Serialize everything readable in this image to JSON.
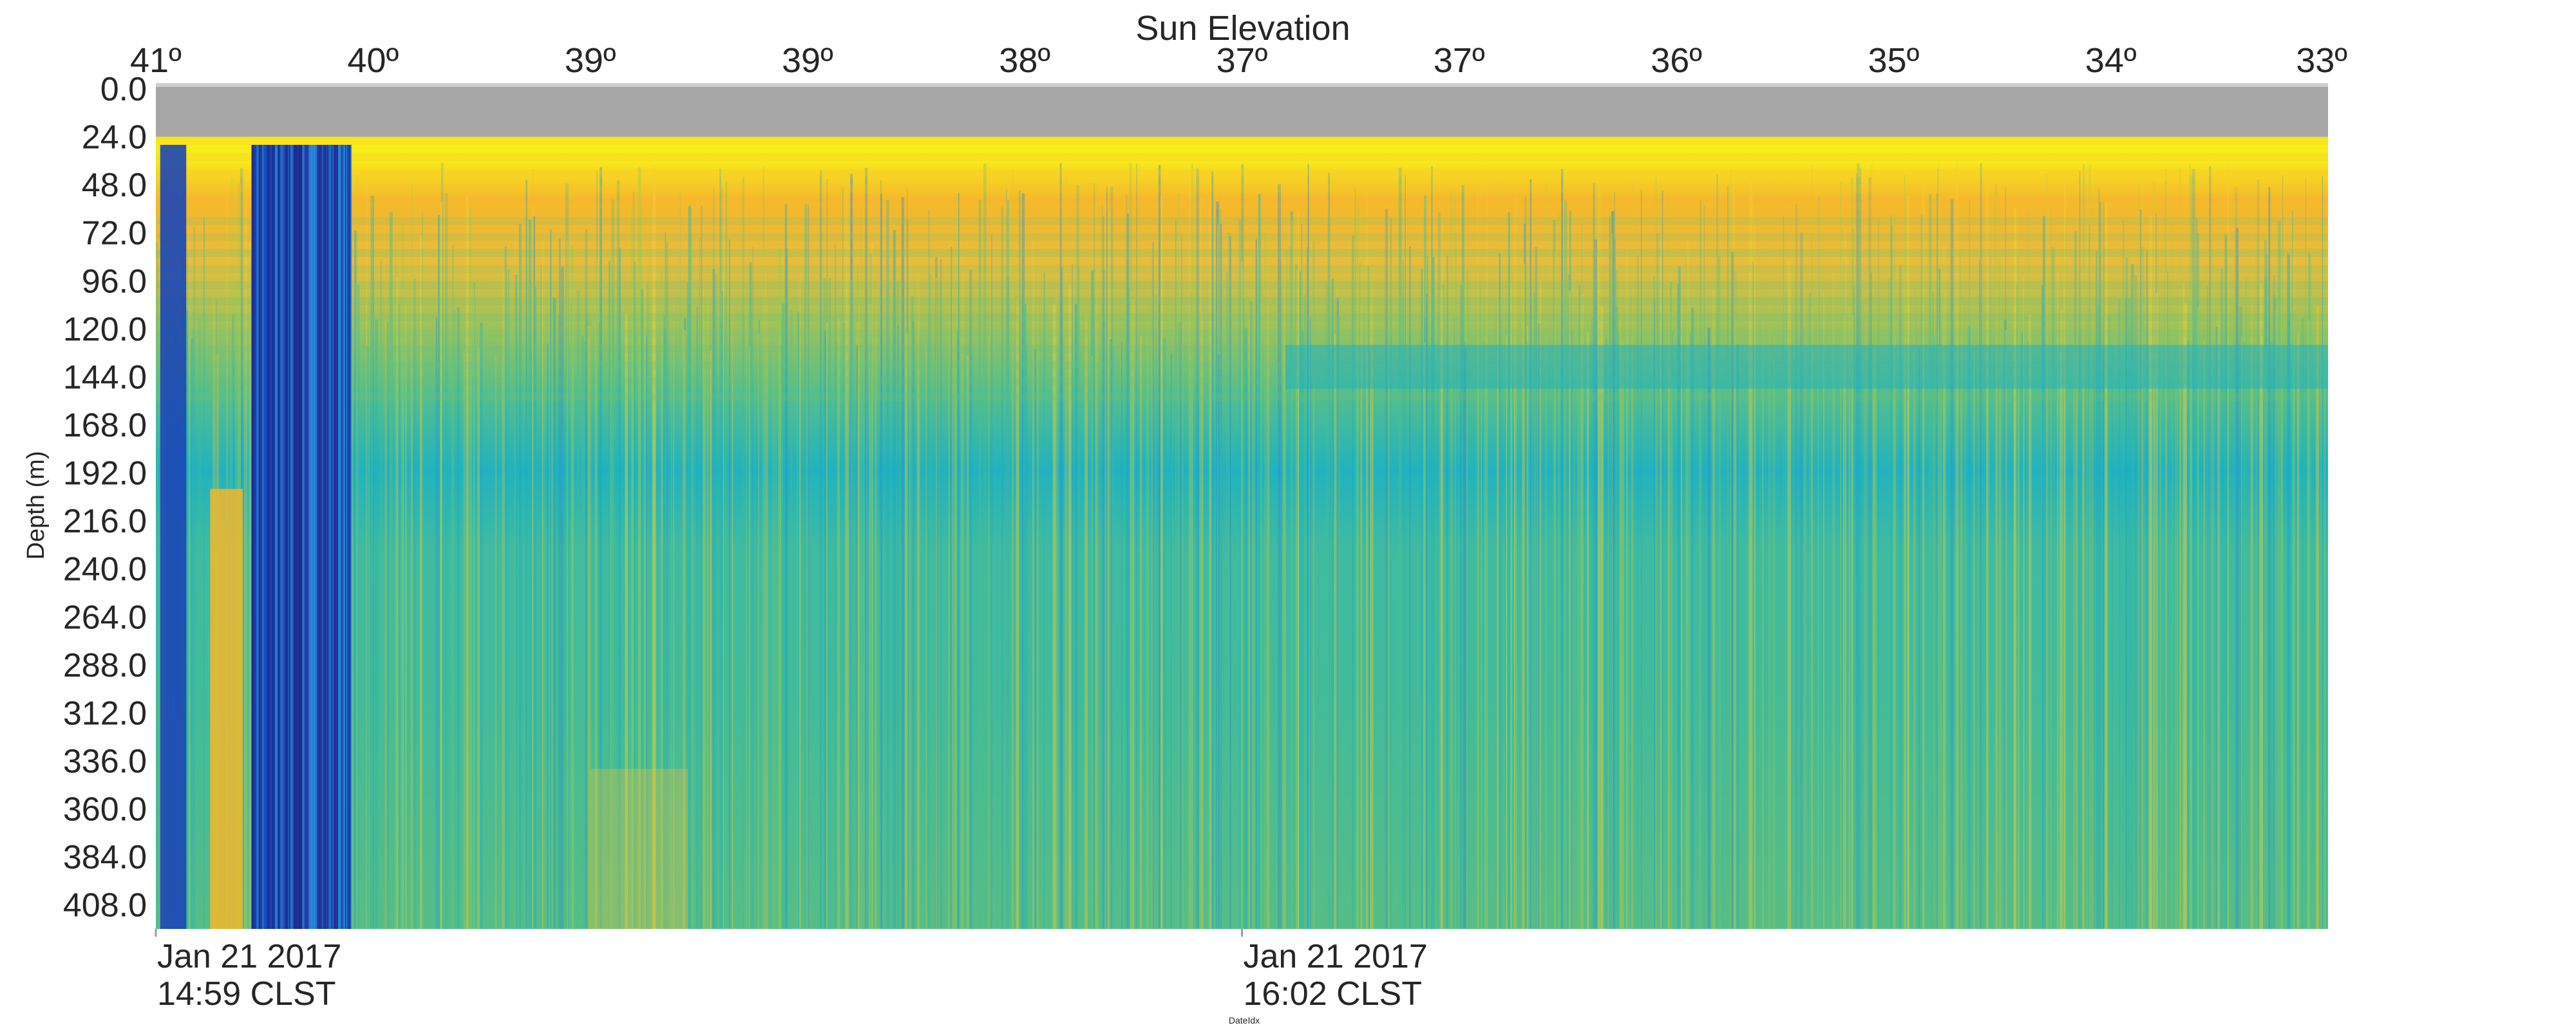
{
  "chart_data": {
    "type": "heatmap",
    "title": "Sun Elevation",
    "ylabel": "Depth (m)",
    "xlabel": "DateIdx",
    "top_ticks": [
      "41º",
      "40º",
      "39º",
      "39º",
      "38º",
      "37º",
      "37º",
      "36º",
      "35º",
      "34º",
      "33º"
    ],
    "y_ticks": [
      "0.0",
      "24.0",
      "48.0",
      "72.0",
      "96.0",
      "120.0",
      "144.0",
      "168.0",
      "192.0",
      "216.0",
      "240.0",
      "264.0",
      "288.0",
      "312.0",
      "336.0",
      "360.0",
      "384.0",
      "408.0"
    ],
    "y_range": [
      0,
      420
    ],
    "bottom_ticks": [
      {
        "line1": "Jan 21 2017",
        "line2": "14:59 CLST",
        "frac": 0.0
      },
      {
        "line1": "Jan 21 2017",
        "line2": "16:02 CLST",
        "frac": 0.5
      }
    ],
    "colors": {
      "no_data": "#a6a6a6",
      "surface": "#f8f116",
      "low": "#1f2f9e",
      "mid_low": "#1560d6",
      "mid": "#1ab4c6",
      "mid_high": "#5cc27d",
      "high": "#d3c43c",
      "very_high": "#f5b12e"
    }
  }
}
